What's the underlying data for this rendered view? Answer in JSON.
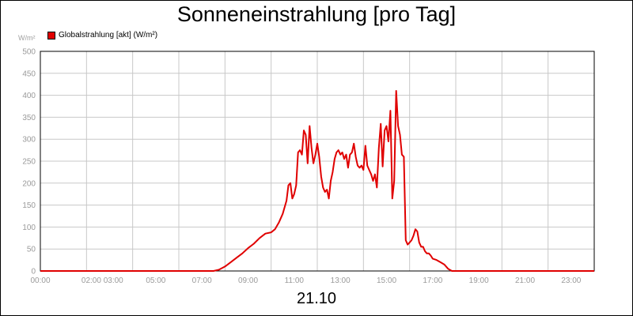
{
  "chart_data": {
    "type": "line",
    "title": "Sonneneinstrahlung [pro Tag]",
    "unit": "W/m²",
    "date_label": "21.10",
    "series": [
      {
        "name": "Globalstrahlung [akt] (W/m²)",
        "color": "#e00000",
        "x": [
          "00:00",
          "07:30",
          "07:45",
          "08:00",
          "08:15",
          "08:30",
          "08:45",
          "09:00",
          "09:15",
          "09:30",
          "09:45",
          "10:00",
          "10:10",
          "10:20",
          "10:30",
          "10:40",
          "10:45",
          "10:50",
          "10:55",
          "11:00",
          "11:05",
          "11:10",
          "11:15",
          "11:20",
          "11:25",
          "11:30",
          "11:35",
          "11:40",
          "11:45",
          "11:50",
          "11:55",
          "12:00",
          "12:05",
          "12:10",
          "12:15",
          "12:20",
          "12:25",
          "12:30",
          "12:35",
          "12:40",
          "12:45",
          "12:50",
          "12:55",
          "13:00",
          "13:05",
          "13:10",
          "13:15",
          "13:20",
          "13:25",
          "13:30",
          "13:35",
          "13:40",
          "13:45",
          "13:50",
          "13:55",
          "14:00",
          "14:05",
          "14:10",
          "14:15",
          "14:20",
          "14:25",
          "14:30",
          "14:35",
          "14:40",
          "14:45",
          "14:50",
          "14:55",
          "15:00",
          "15:05",
          "15:10",
          "15:15",
          "15:20",
          "15:25",
          "15:30",
          "15:35",
          "15:40",
          "15:45",
          "15:50",
          "15:55",
          "16:00",
          "16:05",
          "16:10",
          "16:15",
          "16:20",
          "16:25",
          "16:30",
          "16:35",
          "16:40",
          "16:45",
          "16:50",
          "16:55",
          "17:00",
          "17:10",
          "17:20",
          "17:30",
          "17:40",
          "17:50",
          "18:00",
          "18:10",
          "18:20",
          "18:30",
          "24:00"
        ],
        "values": [
          0,
          0,
          3,
          10,
          20,
          30,
          40,
          52,
          62,
          75,
          85,
          88,
          95,
          110,
          130,
          160,
          195,
          200,
          165,
          175,
          195,
          270,
          275,
          265,
          320,
          310,
          245,
          330,
          280,
          245,
          265,
          290,
          260,
          215,
          190,
          180,
          185,
          165,
          205,
          225,
          255,
          270,
          275,
          265,
          270,
          255,
          265,
          235,
          265,
          270,
          290,
          260,
          240,
          235,
          240,
          230,
          285,
          240,
          230,
          220,
          205,
          220,
          190,
          280,
          335,
          238,
          320,
          330,
          295,
          365,
          165,
          205,
          410,
          330,
          310,
          265,
          260,
          70,
          60,
          65,
          70,
          80,
          95,
          90,
          65,
          55,
          55,
          45,
          40,
          40,
          35,
          28,
          25,
          20,
          15,
          5,
          0,
          0,
          0,
          0,
          0,
          0
        ]
      }
    ],
    "x_ticks": [
      "00:00",
      "02:00 03:00",
      "05:00",
      "07:00",
      "09:00",
      "11:00",
      "13:00",
      "15:00",
      "17:00",
      "19:00",
      "21:00",
      "23:00"
    ],
    "y_ticks": [
      0,
      50,
      100,
      150,
      200,
      250,
      300,
      350,
      400,
      450,
      500
    ],
    "ylim": [
      0,
      500
    ],
    "grid": true,
    "legend_position": "top-left"
  }
}
